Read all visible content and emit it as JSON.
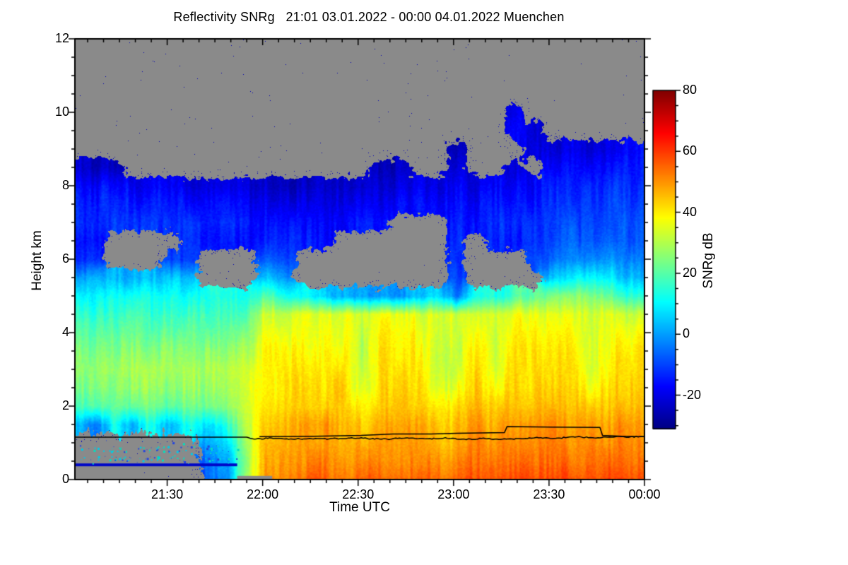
{
  "title": "Reflectivity SNRg   21:01 03.01.2022 - 00:00 04.01.2022 Muenchen",
  "station": "Muenchen",
  "time_start": "21:01 03.01.2022",
  "time_end": "00:00 04.01.2022",
  "axes": {
    "x": {
      "label": "Time UTC",
      "range_minutes": [
        0,
        179
      ],
      "ticks": [
        {
          "label": "21:30",
          "t": 29
        },
        {
          "label": "22:00",
          "t": 59
        },
        {
          "label": "22:30",
          "t": 89
        },
        {
          "label": "23:00",
          "t": 119
        },
        {
          "label": "23:30",
          "t": 149
        },
        {
          "label": "00:00",
          "t": 179
        }
      ],
      "minor_step_min": 5
    },
    "y": {
      "label": "Height km",
      "range_km": [
        0,
        12
      ],
      "ticks": [
        {
          "label": "0",
          "km": 0
        },
        {
          "label": "2",
          "km": 2
        },
        {
          "label": "4",
          "km": 4
        },
        {
          "label": "6",
          "km": 6
        },
        {
          "label": "8",
          "km": 8
        },
        {
          "label": "10",
          "km": 10
        },
        {
          "label": "12",
          "km": 12
        }
      ],
      "minor_step_km": 0.5
    }
  },
  "colorbar": {
    "label": "SNRg dB",
    "vmin": -31,
    "vmax": 80,
    "ticks": [
      {
        "label": "80",
        "db": 80
      },
      {
        "label": "60",
        "db": 60
      },
      {
        "label": "40",
        "db": 40
      },
      {
        "label": "20",
        "db": 20
      },
      {
        "label": "0",
        "db": 0
      },
      {
        "label": "-20",
        "db": -20
      }
    ],
    "minor_step_db": 5,
    "colormap": "jet",
    "colormap_stops": [
      [
        0.0,
        0,
        0,
        131
      ],
      [
        0.125,
        0,
        0,
        255
      ],
      [
        0.375,
        0,
        255,
        255
      ],
      [
        0.625,
        255,
        255,
        0
      ],
      [
        0.875,
        255,
        0,
        0
      ],
      [
        1.0,
        128,
        0,
        0
      ]
    ]
  },
  "colors": {
    "no_data_gray": "#8a8a8a",
    "frame": "#000000",
    "background": "#ffffff",
    "melting_line": "#000000",
    "ground_clutter_line": "#0008c8",
    "clutter_dot_colors": [
      "#00cbe8",
      "#2244e0",
      "#00e0c0"
    ]
  },
  "chart_data": {
    "type": "heatmap",
    "title": "Reflectivity SNRg 21:01 03.01.2022 - 00:00 04.01.2022 Muenchen",
    "xlabel": "Time UTC",
    "ylabel": "Height km",
    "value_label": "SNRg dB",
    "t_max_min": 179,
    "t_minutes": [
      0,
      6,
      12,
      18,
      24,
      30,
      36,
      42,
      48,
      54,
      60,
      66,
      72,
      78,
      84,
      90,
      96,
      102,
      108,
      114,
      120,
      126,
      132,
      138,
      144,
      150,
      156,
      162,
      168,
      174
    ],
    "heights_km": [
      0,
      0.5,
      1,
      1.5,
      2,
      2.5,
      3,
      3.5,
      4,
      4.5,
      5,
      5.5,
      6,
      6.5,
      7,
      7.5,
      8,
      8.5,
      9,
      9.5,
      10,
      10.5,
      11,
      11.5,
      12
    ],
    "snr_db": [
      [
        null,
        null,
        null,
        6,
        19,
        24,
        26,
        23,
        19,
        15,
        10,
        1,
        -13,
        -16,
        -13,
        -14,
        -17,
        -22,
        null,
        null,
        null,
        null,
        null,
        null,
        null
      ],
      [
        null,
        null,
        null,
        -4,
        20,
        25,
        27,
        23,
        19,
        15,
        10,
        2,
        -12,
        -15,
        -13,
        -13,
        -16,
        -23,
        null,
        null,
        null,
        null,
        null,
        null,
        null
      ],
      [
        null,
        null,
        null,
        11,
        22,
        26,
        28,
        24,
        20,
        15,
        11,
        2,
        null,
        null,
        -12,
        -14,
        -17,
        -24,
        null,
        null,
        null,
        null,
        null,
        null,
        null
      ],
      [
        null,
        null,
        null,
        3,
        21,
        26,
        28,
        25,
        20,
        16,
        11,
        3,
        null,
        null,
        -11,
        -14,
        -18,
        null,
        null,
        null,
        null,
        null,
        null,
        null,
        null
      ],
      [
        null,
        null,
        null,
        13,
        23,
        27,
        29,
        25,
        21,
        16,
        12,
        3,
        null,
        null,
        -12,
        -15,
        -19,
        null,
        null,
        null,
        null,
        null,
        null,
        null,
        null
      ],
      [
        null,
        null,
        null,
        5,
        22,
        27,
        29,
        26,
        21,
        17,
        12,
        4,
        -11,
        null,
        -12,
        -15,
        -19,
        null,
        null,
        null,
        null,
        null,
        null,
        null,
        null
      ],
      [
        null,
        null,
        null,
        15,
        24,
        28,
        30,
        26,
        22,
        17,
        13,
        5,
        -10,
        -13,
        -12,
        -16,
        -20,
        null,
        null,
        null,
        null,
        null,
        null,
        null,
        null
      ],
      [
        -8,
        -6,
        2,
        8,
        24,
        28,
        30,
        27,
        22,
        18,
        13,
        null,
        null,
        -14,
        -13,
        -16,
        -21,
        null,
        null,
        null,
        null,
        null,
        null,
        null,
        null
      ],
      [
        0,
        2,
        8,
        16,
        26,
        29,
        31,
        27,
        23,
        18,
        14,
        null,
        null,
        -15,
        -13,
        -17,
        -22,
        null,
        null,
        null,
        null,
        null,
        null,
        null,
        null
      ],
      [
        28,
        26,
        27,
        29,
        31,
        32,
        32,
        29,
        25,
        20,
        13,
        null,
        null,
        -15,
        -14,
        -18,
        -22,
        null,
        null,
        null,
        null,
        null,
        null,
        null,
        null
      ],
      [
        50,
        48,
        46,
        44,
        41,
        40,
        39,
        38,
        36,
        33,
        20,
        4,
        -7,
        -13,
        -15,
        -18,
        -22,
        null,
        null,
        null,
        null,
        null,
        null,
        null,
        null
      ],
      [
        52,
        50,
        47,
        45,
        42,
        41,
        40,
        39,
        37,
        34,
        15,
        0,
        -9,
        -14,
        -16,
        -19,
        -23,
        null,
        null,
        null,
        null,
        null,
        null,
        null,
        null
      ],
      [
        55,
        51,
        48,
        48,
        42,
        41,
        40,
        39,
        37,
        35,
        10,
        null,
        null,
        -14,
        -16,
        -19,
        -23,
        null,
        null,
        null,
        null,
        null,
        null,
        null,
        null
      ],
      [
        56,
        52,
        48,
        49,
        43,
        41,
        40,
        39,
        38,
        35,
        5,
        null,
        null,
        -15,
        -16,
        -20,
        -23,
        null,
        null,
        null,
        null,
        null,
        null,
        null,
        null
      ],
      [
        55,
        51,
        48,
        47,
        43,
        42,
        41,
        40,
        38,
        36,
        2,
        null,
        null,
        null,
        -15,
        -19,
        -23,
        null,
        null,
        null,
        null,
        null,
        null,
        null,
        null
      ],
      [
        54,
        50,
        47,
        44,
        40,
        34,
        32,
        31,
        32,
        33,
        0,
        null,
        null,
        null,
        -14,
        -18,
        -22,
        null,
        null,
        null,
        null,
        null,
        null,
        null,
        null
      ],
      [
        56,
        52,
        49,
        47,
        43,
        42,
        41,
        40,
        38,
        36,
        0,
        null,
        null,
        null,
        -15,
        -18,
        -21,
        -24,
        null,
        null,
        null,
        null,
        null,
        null,
        null
      ],
      [
        57,
        52,
        49,
        48,
        44,
        42,
        41,
        40,
        39,
        36,
        -2,
        null,
        null,
        null,
        null,
        -16,
        -20,
        -24,
        null,
        null,
        null,
        null,
        null,
        null,
        null
      ],
      [
        56,
        52,
        49,
        47,
        43,
        42,
        41,
        40,
        38,
        35,
        5,
        null,
        null,
        null,
        null,
        -17,
        -20,
        null,
        null,
        null,
        null,
        null,
        null,
        null,
        null
      ],
      [
        55,
        51,
        46,
        44,
        40,
        34,
        32,
        31,
        31,
        32,
        8,
        null,
        null,
        null,
        null,
        -16,
        -19,
        null,
        null,
        null,
        null,
        null,
        null,
        null,
        null
      ],
      [
        57,
        53,
        48,
        46,
        43,
        38,
        34,
        33,
        33,
        33,
        -5,
        -10,
        -13,
        -14,
        -15,
        -16,
        -18,
        -22,
        -25,
        null,
        null,
        null,
        null,
        null,
        null
      ],
      [
        58,
        54,
        51,
        49,
        45,
        43,
        42,
        41,
        39,
        36,
        15,
        null,
        null,
        null,
        -15,
        -17,
        -20,
        null,
        null,
        null,
        null,
        null,
        null,
        null,
        null
      ],
      [
        57,
        53,
        50,
        47,
        44,
        38,
        34,
        33,
        32,
        32,
        12,
        null,
        null,
        -14,
        -13,
        -15,
        -18,
        null,
        null,
        null,
        null,
        null,
        null,
        null,
        null
      ],
      [
        58,
        54,
        51,
        49,
        45,
        43,
        42,
        41,
        39,
        36,
        18,
        null,
        null,
        -14,
        -12,
        -14,
        -17,
        -21,
        null,
        -19,
        -21,
        null,
        null,
        null,
        null
      ],
      [
        58,
        54,
        51,
        50,
        45,
        43,
        42,
        41,
        39,
        36,
        22,
        null,
        -8,
        -12,
        -12,
        -14,
        -16,
        null,
        -20,
        -22,
        null,
        null,
        null,
        null,
        null
      ],
      [
        59,
        55,
        52,
        50,
        46,
        44,
        42,
        41,
        39,
        36,
        26,
        5,
        -6,
        -10,
        -11,
        -13,
        -15,
        -18,
        -22,
        null,
        null,
        null,
        null,
        null,
        null
      ],
      [
        58,
        54,
        51,
        49,
        45,
        43,
        42,
        40,
        38,
        35,
        25,
        8,
        -4,
        -8,
        -10,
        -12,
        -14,
        -17,
        -21,
        null,
        null,
        null,
        null,
        null,
        null
      ],
      [
        57,
        53,
        50,
        48,
        44,
        38,
        34,
        33,
        32,
        32,
        24,
        10,
        -2,
        -7,
        -9,
        -11,
        -13,
        -16,
        -20,
        null,
        null,
        null,
        null,
        null,
        null
      ],
      [
        58,
        54,
        51,
        49,
        45,
        43,
        41,
        40,
        38,
        35,
        20,
        8,
        0,
        -5,
        -8,
        -10,
        -12,
        -15,
        -19,
        null,
        null,
        null,
        null,
        null,
        null
      ],
      [
        59,
        55,
        52,
        50,
        46,
        44,
        42,
        40,
        37,
        32,
        14,
        2,
        -4,
        -8,
        -8,
        -10,
        -12,
        -14,
        -17,
        null,
        null,
        null,
        null,
        null,
        null
      ]
    ],
    "overlays": {
      "melting_layer_line_wiggly": {
        "points": [
          [
            0,
            1.155
          ],
          [
            54,
            1.155
          ],
          [
            56,
            1.1
          ],
          [
            62,
            1.13
          ],
          [
            68,
            1.1
          ],
          [
            74,
            1.12
          ],
          [
            80,
            1.11
          ],
          [
            86,
            1.13
          ],
          [
            92,
            1.12
          ],
          [
            98,
            1.1
          ],
          [
            104,
            1.13
          ],
          [
            110,
            1.11
          ],
          [
            116,
            1.13
          ],
          [
            122,
            1.09
          ],
          [
            128,
            1.12
          ],
          [
            134,
            1.1
          ],
          [
            140,
            1.12
          ],
          [
            146,
            1.14
          ],
          [
            150,
            1.11
          ],
          [
            154,
            1.14
          ],
          [
            158,
            1.16
          ],
          [
            162,
            1.14
          ],
          [
            166,
            1.15
          ],
          [
            170,
            1.17
          ],
          [
            174,
            1.16
          ],
          [
            179,
            1.17
          ]
        ],
        "jitter_km": 0.018
      },
      "melting_layer_line_step": {
        "points": [
          [
            58,
            1.17
          ],
          [
            75,
            1.18
          ],
          [
            90,
            1.2
          ],
          [
            100,
            1.24
          ],
          [
            112,
            1.24
          ],
          [
            120,
            1.26
          ],
          [
            135,
            1.28
          ],
          [
            135.8,
            1.44
          ],
          [
            150,
            1.43
          ],
          [
            165,
            1.42
          ],
          [
            165.8,
            1.2
          ],
          [
            172,
            1.18
          ],
          [
            179,
            1.17
          ]
        ]
      },
      "ground_clutter_line": {
        "t_range": [
          0,
          51
        ],
        "h_km": 0.4,
        "thickness_px": 4
      },
      "bottom_nodata_strip": {
        "t_range": [
          51,
          62
        ],
        "h_top_km": 0.1
      },
      "clutter_dots": {
        "t_range": [
          1,
          51
        ],
        "h_range_km": [
          0.44,
          1.08
        ],
        "count": 150
      }
    }
  }
}
